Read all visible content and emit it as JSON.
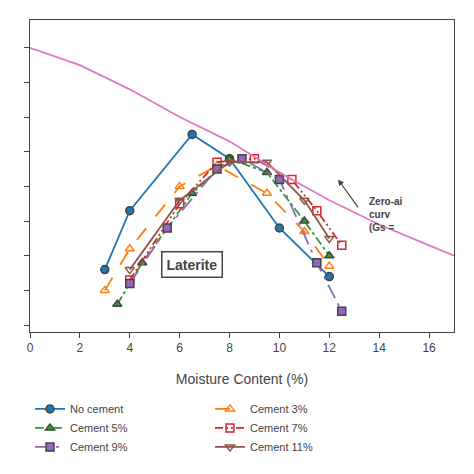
{
  "chart_data": {
    "type": "line",
    "xlabel": "Moisture Content (%)",
    "xlim": [
      0,
      17
    ],
    "xticks": [
      0,
      2,
      4,
      6,
      8,
      10,
      12,
      14,
      16
    ],
    "ylim": [
      1.38,
      2.28
    ],
    "yticks": [
      1.4,
      1.5,
      1.6,
      1.7,
      1.8,
      1.9,
      2.0,
      2.1,
      2.2
    ],
    "tick_labels": "x",
    "grid": false,
    "legend": "bottom",
    "series": [
      {
        "name": "No cement",
        "marker": "circle",
        "line_style": "solid",
        "x": [
          3.0,
          4.0,
          6.5,
          8.0,
          10.0,
          12.0
        ],
        "values": [
          1.56,
          1.73,
          1.95,
          1.88,
          1.68,
          1.54
        ]
      },
      {
        "name": "Cement 3%",
        "marker": "triangle-up-open",
        "line_style": "dashed",
        "x": [
          3.0,
          4.0,
          6.0,
          7.5,
          9.5,
          11.0,
          12.0
        ],
        "values": [
          1.5,
          1.62,
          1.8,
          1.86,
          1.78,
          1.67,
          1.57
        ]
      },
      {
        "name": "Cement 5%",
        "marker": "triangle-up",
        "line_style": "dashdot",
        "x": [
          3.5,
          4.5,
          6.5,
          8.0,
          9.5,
          11.0,
          12.0
        ],
        "values": [
          1.46,
          1.58,
          1.78,
          1.88,
          1.84,
          1.7,
          1.6
        ]
      },
      {
        "name": "Cement 7%",
        "marker": "square-open",
        "line_style": "dashdotdot",
        "x": [
          4.0,
          6.0,
          7.5,
          9.0,
          10.5,
          11.5,
          12.5
        ],
        "values": [
          1.53,
          1.75,
          1.87,
          1.88,
          1.82,
          1.73,
          1.63
        ]
      },
      {
        "name": "Cement 9%",
        "marker": "square",
        "line_style": "longdashdot",
        "x": [
          4.0,
          5.5,
          7.5,
          8.5,
          10.0,
          11.5,
          12.5
        ],
        "values": [
          1.52,
          1.68,
          1.85,
          1.88,
          1.82,
          1.58,
          1.44
        ]
      },
      {
        "name": "Cement 11%",
        "marker": "triangle-down-open",
        "line_style": "solid",
        "x": [
          4.0,
          6.0,
          8.0,
          9.5,
          11.0,
          12.0
        ],
        "values": [
          1.56,
          1.76,
          1.87,
          1.87,
          1.76,
          1.65
        ]
      },
      {
        "marker": "none",
        "line_style": "solid",
        "x": [
          0,
          2,
          4,
          6,
          8,
          10,
          12,
          14,
          16,
          17
        ],
        "values": [
          2.2,
          2.15,
          2.08,
          2.0,
          1.93,
          1.84,
          1.76,
          1.69,
          1.63,
          1.6
        ]
      }
    ],
    "annotations": [
      {
        "text": "Zero-ai\ncurv\n(Gs =",
        "x": 13.5,
        "y": 1.72,
        "arrow_from": [
          13.2,
          1.735
        ],
        "arrow_to": [
          12.35,
          1.82
        ]
      },
      {
        "text": "Laterite",
        "x": 6.5,
        "y": 1.575
      }
    ]
  }
}
